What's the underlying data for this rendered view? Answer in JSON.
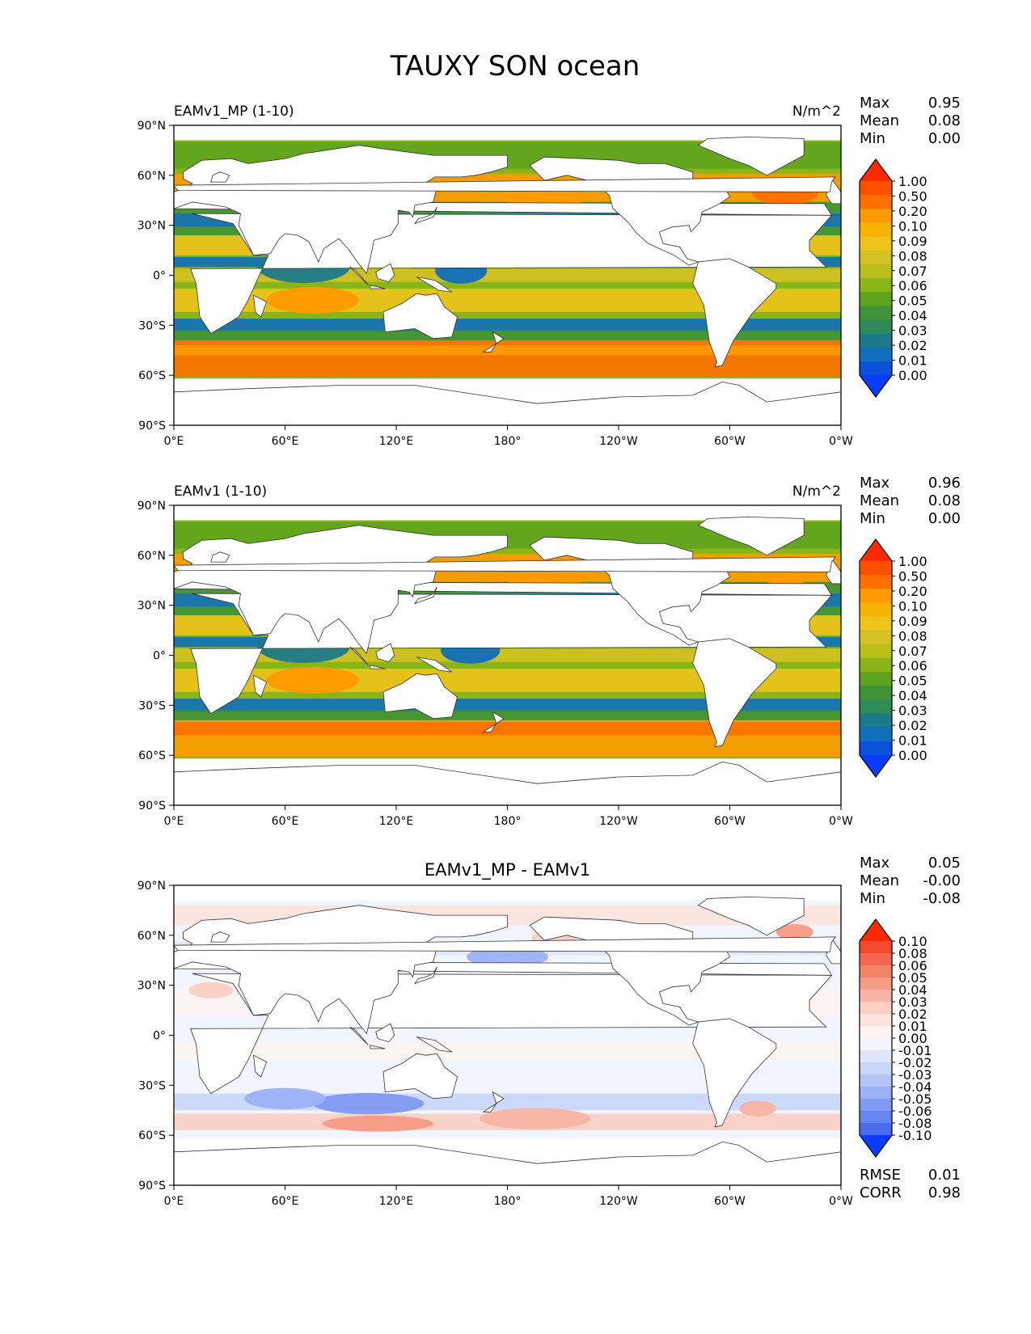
{
  "figure": {
    "title": "TAUXY SON ocean"
  },
  "axes": {
    "lat_ticks": [
      "90°N",
      "60°N",
      "30°N",
      "0°",
      "30°S",
      "60°S",
      "90°S"
    ],
    "lon_ticks": [
      "0°E",
      "60°E",
      "120°E",
      "180°",
      "120°W",
      "60°W",
      "0°W"
    ]
  },
  "chart_data": [
    {
      "type": "heatmap",
      "name": "test",
      "left_title": "EAMv1_MP (1-10)",
      "center_title": "",
      "units": "N/m^2",
      "stats": [
        {
          "label": "Max",
          "value": "0.95"
        },
        {
          "label": "Mean",
          "value": "0.08"
        },
        {
          "label": "Min",
          "value": "0.00"
        }
      ],
      "colorbar": {
        "levels": [
          "1.00",
          "0.50",
          "0.20",
          "0.10",
          "0.09",
          "0.08",
          "0.07",
          "0.06",
          "0.05",
          "0.04",
          "0.03",
          "0.02",
          "0.01",
          "0.00"
        ],
        "colors": [
          "#ff2a00",
          "#ff5000",
          "#ff7000",
          "#ff9a00",
          "#f6b400",
          "#eec31a",
          "#d4c224",
          "#b8bf18",
          "#8ab418",
          "#5ea31e",
          "#3f9235",
          "#2e8a56",
          "#1b7a8a",
          "#0f6fba",
          "#0a52dc",
          "#0a3cff"
        ]
      },
      "extra_stats": []
    },
    {
      "type": "heatmap",
      "name": "reference",
      "left_title": "EAMv1 (1-10)",
      "center_title": "",
      "units": "N/m^2",
      "stats": [
        {
          "label": "Max",
          "value": "0.96"
        },
        {
          "label": "Mean",
          "value": "0.08"
        },
        {
          "label": "Min",
          "value": "0.00"
        }
      ],
      "colorbar": {
        "levels": [
          "1.00",
          "0.50",
          "0.20",
          "0.10",
          "0.09",
          "0.08",
          "0.07",
          "0.06",
          "0.05",
          "0.04",
          "0.03",
          "0.02",
          "0.01",
          "0.00"
        ],
        "colors": [
          "#ff2a00",
          "#ff5000",
          "#ff7000",
          "#ff9a00",
          "#f6b400",
          "#eec31a",
          "#d4c224",
          "#b8bf18",
          "#8ab418",
          "#5ea31e",
          "#3f9235",
          "#2e8a56",
          "#1b7a8a",
          "#0f6fba",
          "#0a52dc",
          "#0a3cff"
        ]
      },
      "extra_stats": []
    },
    {
      "type": "heatmap",
      "name": "difference",
      "left_title": "",
      "center_title": "EAMv1_MP - EAMv1",
      "units": "",
      "stats": [
        {
          "label": "Max",
          "value": "0.05"
        },
        {
          "label": "Mean",
          "value": "-0.00"
        },
        {
          "label": "Min",
          "value": "-0.08"
        }
      ],
      "colorbar": {
        "levels": [
          "0.10",
          "0.08",
          "0.06",
          "0.05",
          "0.04",
          "0.03",
          "0.02",
          "0.01",
          "0.00",
          "-0.01",
          "-0.02",
          "-0.03",
          "-0.04",
          "-0.05",
          "-0.06",
          "-0.08",
          "-0.10"
        ],
        "colors": [
          "#ff2a00",
          "#f4492f",
          "#f3664f",
          "#f28367",
          "#f59b86",
          "#f8b4a4",
          "#fbcfc2",
          "#fde3dc",
          "#fdf4f1",
          "#f2f4fe",
          "#dfe6fc",
          "#c9d6fa",
          "#b3c5f8",
          "#9bb1f5",
          "#8099f2",
          "#6484f0",
          "#4a6df0",
          "#0a3cff"
        ]
      },
      "extra_stats": [
        {
          "label": "RMSE",
          "value": "0.01"
        },
        {
          "label": "CORR",
          "value": "0.98"
        }
      ]
    }
  ],
  "fields": [
    {
      "bg": "#8ab418",
      "bands": [
        {
          "lat": 72,
          "hw": 8,
          "color": "#5ea31e"
        },
        {
          "lat": 52,
          "hw": 9,
          "color": "#ff9a00"
        },
        {
          "lat": 40,
          "hw": 4,
          "color": "#3f9235"
        },
        {
          "lat": 33,
          "hw": 4,
          "color": "#0f6fba"
        },
        {
          "lat": 26,
          "hw": 3,
          "color": "#3f9235"
        },
        {
          "lat": 18,
          "hw": 6,
          "color": "#eec31a"
        },
        {
          "lat": 8,
          "hw": 3,
          "color": "#0f6fba"
        },
        {
          "lat": 0,
          "hw": 4,
          "color": "#d4c224"
        },
        {
          "lat": -15,
          "hw": 7,
          "color": "#eec31a"
        },
        {
          "lat": -30,
          "hw": 4,
          "color": "#0f6fba"
        },
        {
          "lat": -36,
          "hw": 3,
          "color": "#3f9235"
        },
        {
          "lat": -50,
          "hw": 11,
          "color": "#ff7000"
        },
        {
          "lat": -45,
          "hw": 3,
          "color": "#ff9a00"
        }
      ],
      "blobs": [
        {
          "lon": 200,
          "lat": 18,
          "rx": 16,
          "ry": 4,
          "color": "#ff9a00"
        },
        {
          "lon": 200,
          "lat": 48,
          "rx": 24,
          "ry": 5,
          "color": "#ff9a00"
        },
        {
          "lon": 330,
          "lat": 50,
          "rx": 18,
          "ry": 5,
          "color": "#ff7000"
        },
        {
          "lon": 75,
          "lat": -15,
          "rx": 25,
          "ry": 5,
          "color": "#ff9a00"
        },
        {
          "lon": 70,
          "lat": 5,
          "rx": 25,
          "ry": 6,
          "color": "#1b7a8a"
        },
        {
          "lon": 155,
          "lat": 3,
          "rx": 14,
          "ry": 5,
          "color": "#0f6fba"
        }
      ]
    },
    {
      "bg": "#8ab418",
      "bands": [
        {
          "lat": 72,
          "hw": 8,
          "color": "#5ea31e"
        },
        {
          "lat": 52,
          "hw": 9,
          "color": "#ff9a00"
        },
        {
          "lat": 40,
          "hw": 4,
          "color": "#3f9235"
        },
        {
          "lat": 33,
          "hw": 4,
          "color": "#0f6fba"
        },
        {
          "lat": 26,
          "hw": 3,
          "color": "#3f9235"
        },
        {
          "lat": 18,
          "hw": 6,
          "color": "#eec31a"
        },
        {
          "lat": 8,
          "hw": 3,
          "color": "#0f6fba"
        },
        {
          "lat": 0,
          "hw": 4,
          "color": "#d4c224"
        },
        {
          "lat": -15,
          "hw": 7,
          "color": "#eec31a"
        },
        {
          "lat": -30,
          "hw": 4,
          "color": "#0f6fba"
        },
        {
          "lat": -36,
          "hw": 3,
          "color": "#3f9235"
        },
        {
          "lat": -50,
          "hw": 11,
          "color": "#ff9a00"
        },
        {
          "lat": -44,
          "hw": 4,
          "color": "#ff7000"
        }
      ],
      "blobs": [
        {
          "lon": 200,
          "lat": 18,
          "rx": 16,
          "ry": 4,
          "color": "#ff9a00"
        },
        {
          "lon": 200,
          "lat": 50,
          "rx": 26,
          "ry": 6,
          "color": "#ff9a00"
        },
        {
          "lon": 330,
          "lat": 50,
          "rx": 16,
          "ry": 5,
          "color": "#ff9a00"
        },
        {
          "lon": 75,
          "lat": -15,
          "rx": 25,
          "ry": 5,
          "color": "#ff9a00"
        },
        {
          "lon": 70,
          "lat": 5,
          "rx": 25,
          "ry": 6,
          "color": "#1b7a8a"
        },
        {
          "lon": 160,
          "lat": 3,
          "rx": 16,
          "ry": 5,
          "color": "#0f6fba"
        }
      ]
    },
    {
      "bg": "#f2f4fe",
      "bands": [
        {
          "lat": 72,
          "hw": 6,
          "color": "#fde3dc"
        },
        {
          "lat": 52,
          "hw": 4,
          "color": "#dfe6fc"
        },
        {
          "lat": 20,
          "hw": 8,
          "color": "#fdf4f1"
        },
        {
          "lat": -10,
          "hw": 6,
          "color": "#fdf4f1"
        },
        {
          "lat": -40,
          "hw": 5,
          "color": "#c9d6fa"
        },
        {
          "lat": -52,
          "hw": 5,
          "color": "#fbcfc2"
        }
      ],
      "blobs": [
        {
          "lon": 180,
          "lat": 47,
          "rx": 22,
          "ry": 4,
          "color": "#9bb1f5"
        },
        {
          "lon": 205,
          "lat": 58,
          "rx": 12,
          "ry": 3,
          "color": "#fbcfc2"
        },
        {
          "lon": 335,
          "lat": 62,
          "rx": 10,
          "ry": 3,
          "color": "#f59b86"
        },
        {
          "lon": 105,
          "lat": -41,
          "rx": 30,
          "ry": 4,
          "color": "#8099f2"
        },
        {
          "lon": 60,
          "lat": -38,
          "rx": 22,
          "ry": 4,
          "color": "#9bb1f5"
        },
        {
          "lon": 110,
          "lat": -53,
          "rx": 30,
          "ry": 3,
          "color": "#f59b86"
        },
        {
          "lon": 195,
          "lat": -50,
          "rx": 30,
          "ry": 4,
          "color": "#f8b4a4"
        },
        {
          "lon": 315,
          "lat": -44,
          "rx": 10,
          "ry": 3,
          "color": "#f8b4a4"
        },
        {
          "lon": 20,
          "lat": 27,
          "rx": 12,
          "ry": 3,
          "color": "#fbcfc2"
        }
      ]
    }
  ]
}
